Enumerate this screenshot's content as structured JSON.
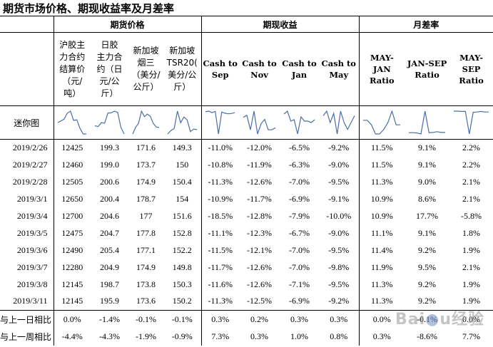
{
  "title": "期货市场价格、期现收益率及月差率",
  "groups": [
    "期货价格",
    "期现收益",
    "月差率"
  ],
  "columns": [
    [
      "沪胶主",
      "力合约",
      "结算价",
      "（元/",
      "吨）"
    ],
    [
      "日胶",
      "主力合",
      "约（日",
      "元/公",
      "斤）"
    ],
    [
      "新加坡",
      "烟三",
      "（美分/",
      "公斤）"
    ],
    [
      "新加坡",
      "TSR20(",
      "美分/公",
      "斤）"
    ],
    [
      "Cash to",
      "Sep"
    ],
    [
      "Cash to",
      "Nov"
    ],
    [
      "Cash to",
      "Jan"
    ],
    [
      "Cash to",
      "May"
    ],
    [
      "MAY-",
      "JAN",
      "Ratio"
    ],
    [
      "JAN-SEP",
      "Ratio"
    ],
    [
      "MAY-",
      "SEP",
      "Ratio"
    ]
  ],
  "sparkline_label": "迷你图",
  "rows": [
    {
      "date": "2019/2/26",
      "values": [
        "12425",
        "199.3",
        "171.6",
        "149.3",
        "-11.0%",
        "-12.0%",
        "-6.5%",
        "-9.2%",
        "11.5%",
        "9.1%",
        "2.2%"
      ]
    },
    {
      "date": "2019/2/27",
      "values": [
        "12460",
        "199.0",
        "173.7",
        "150",
        "-10.8%",
        "-11.9%",
        "-6.3%",
        "-9.0%",
        "11.5%",
        "9.1%",
        "2.2%"
      ]
    },
    {
      "date": "2019/2/28",
      "values": [
        "12505",
        "200.6",
        "174.9",
        "150.4",
        "-11.3%",
        "-12.6%",
        "-7.0%",
        "-9.5%",
        "11.3%",
        "9.0%",
        "2.1%"
      ]
    },
    {
      "date": "2019/3/1",
      "values": [
        "12650",
        "200.4",
        "178.7",
        "154",
        "-10.9%",
        "-11.7%",
        "-6.9%",
        "-9.1%",
        "10.9%",
        "8.6%",
        "2.1%"
      ]
    },
    {
      "date": "2019/3/4",
      "values": [
        "12700",
        "204.6",
        "177",
        "151.6",
        "-18.5%",
        "-12.8%",
        "-7.9%",
        "-10.0%",
        "10.9%",
        "17.7%",
        "-5.8%"
      ]
    },
    {
      "date": "2019/3/5",
      "values": [
        "12475",
        "204.7",
        "177.8",
        "152.8",
        "-11.1%",
        "-12.3%",
        "-6.7%",
        "-9.0%",
        "11.1%",
        "9.1%",
        "1.8%"
      ]
    },
    {
      "date": "2019/3/6",
      "values": [
        "12490",
        "205.4",
        "177.1",
        "152.2",
        "-11.5%",
        "-12.1%",
        "-7.0%",
        "-9.5%",
        "11.4%",
        "9.2%",
        "1.9%"
      ]
    },
    {
      "date": "2019/3/7",
      "values": [
        "12280",
        "204.9",
        "174.9",
        "149.8",
        "-11.7%",
        "-12.6%",
        "-7.0%",
        "-9.8%",
        "11.9%",
        "9.5%",
        "2.1%"
      ]
    },
    {
      "date": "2019/3/8",
      "values": [
        "12145",
        "198.7",
        "173.8",
        "150.3",
        "-11.6%",
        "-12.6%",
        "-7.1%",
        "-9.5%",
        "11.3%",
        "9.2%",
        "1.9%"
      ]
    },
    {
      "date": "2019/3/11",
      "values": [
        "12145",
        "195.9",
        "173.6",
        "150.2",
        "-11.3%",
        "-12.5%",
        "-6.9%",
        "-9.2%",
        "11.3%",
        "9.2%",
        "1.9%"
      ]
    }
  ],
  "footer": [
    {
      "label": "与上一日相比",
      "values": [
        "0.0%",
        "-1.4%",
        "-0.1%",
        "-0.1%",
        "0.3%",
        "0.2%",
        "0.3%",
        "0.3%",
        "0.0%",
        "-0.1%",
        "0.0%"
      ]
    },
    {
      "label": "与上一周相比",
      "values": [
        "-4.4%",
        "-4.3%",
        "-1.9%",
        "-0.9%",
        "7.3%",
        "0.3%",
        "1.0%",
        "0.8%",
        "0.3%",
        "-8.6%",
        "7.7%"
      ]
    }
  ],
  "watermark": "Baidu 经验"
}
